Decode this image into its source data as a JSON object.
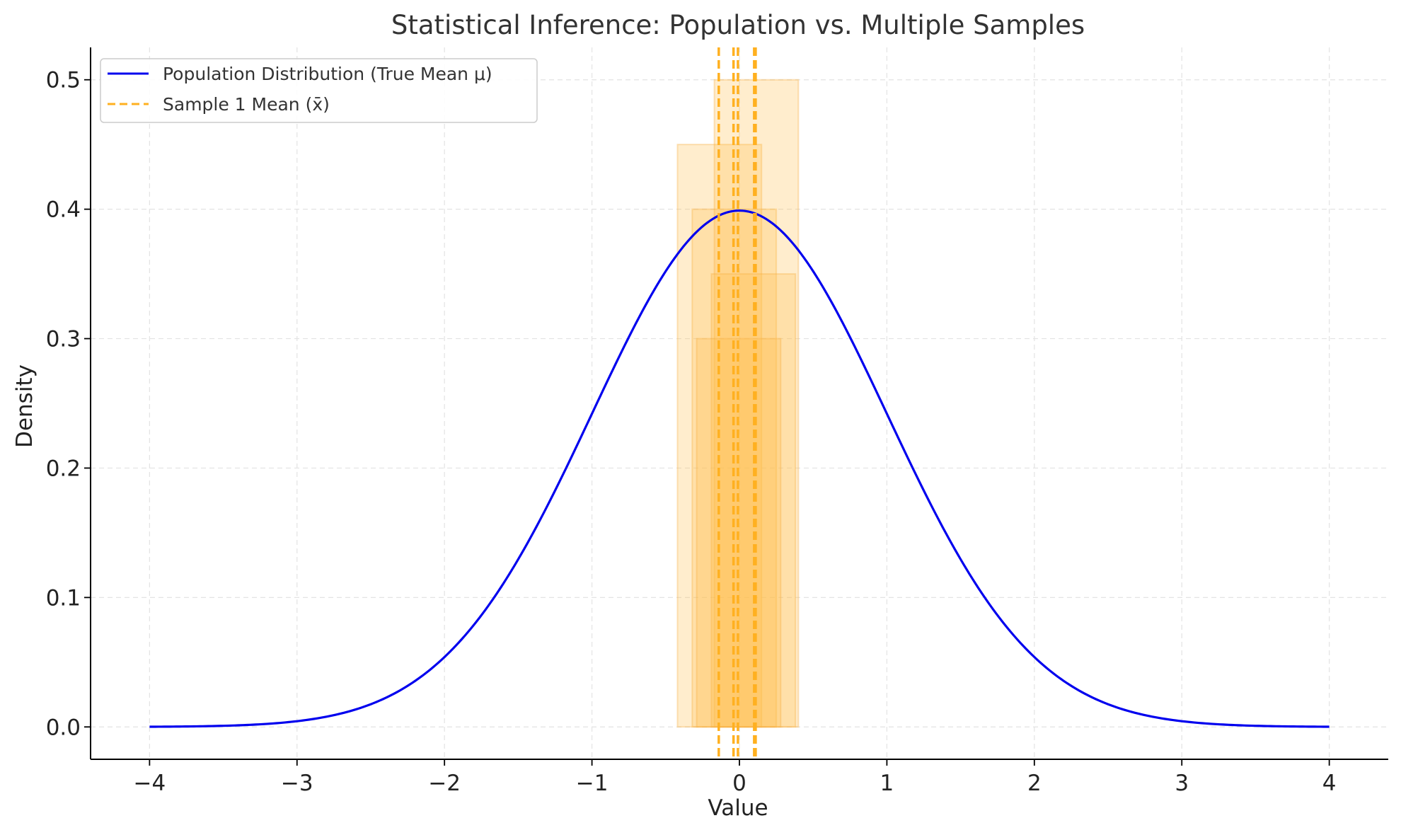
{
  "chart_data": {
    "type": "line",
    "title": "Statistical Inference: Population vs. Multiple Samples",
    "xlabel": "Value",
    "ylabel": "Density",
    "xlim": [
      -4.4,
      4.4
    ],
    "ylim": [
      -0.025,
      0.525
    ],
    "xticks": [
      -4,
      -3,
      -2,
      -1,
      0,
      1,
      2,
      3,
      4
    ],
    "xtick_labels": [
      "−4",
      "−3",
      "−2",
      "−1",
      "0",
      "1",
      "2",
      "3",
      "4"
    ],
    "yticks": [
      0.0,
      0.1,
      0.2,
      0.3,
      0.4,
      0.5
    ],
    "ytick_labels": [
      "0.0",
      "0.1",
      "0.2",
      "0.3",
      "0.4",
      "0.5"
    ],
    "grid": true,
    "legend_position": "top-left",
    "series": [
      {
        "name": "Population Distribution (True Mean μ)",
        "kind": "normal-pdf",
        "mean": 0,
        "sd": 1,
        "x_range": [
          -4,
          4
        ],
        "color": "#0000ee"
      }
    ],
    "sample_histograms": [
      {
        "x_start": -0.42,
        "x_end": 0.15,
        "height": 0.45
      },
      {
        "x_start": -0.32,
        "x_end": 0.25,
        "height": 0.4
      },
      {
        "x_start": -0.17,
        "x_end": 0.4,
        "height": 0.5
      },
      {
        "x_start": -0.19,
        "x_end": 0.38,
        "height": 0.35
      },
      {
        "x_start": -0.29,
        "x_end": 0.28,
        "height": 0.3
      }
    ],
    "sample_histogram_color": "#ffc04d",
    "sample_means": [
      {
        "name": "Sample 1 Mean (x̄)",
        "x": -0.14
      },
      {
        "x": -0.04
      },
      {
        "x": -0.01
      },
      {
        "x": 0.1
      },
      {
        "x": 0.11
      }
    ],
    "sample_mean_color": "#ffb020"
  }
}
